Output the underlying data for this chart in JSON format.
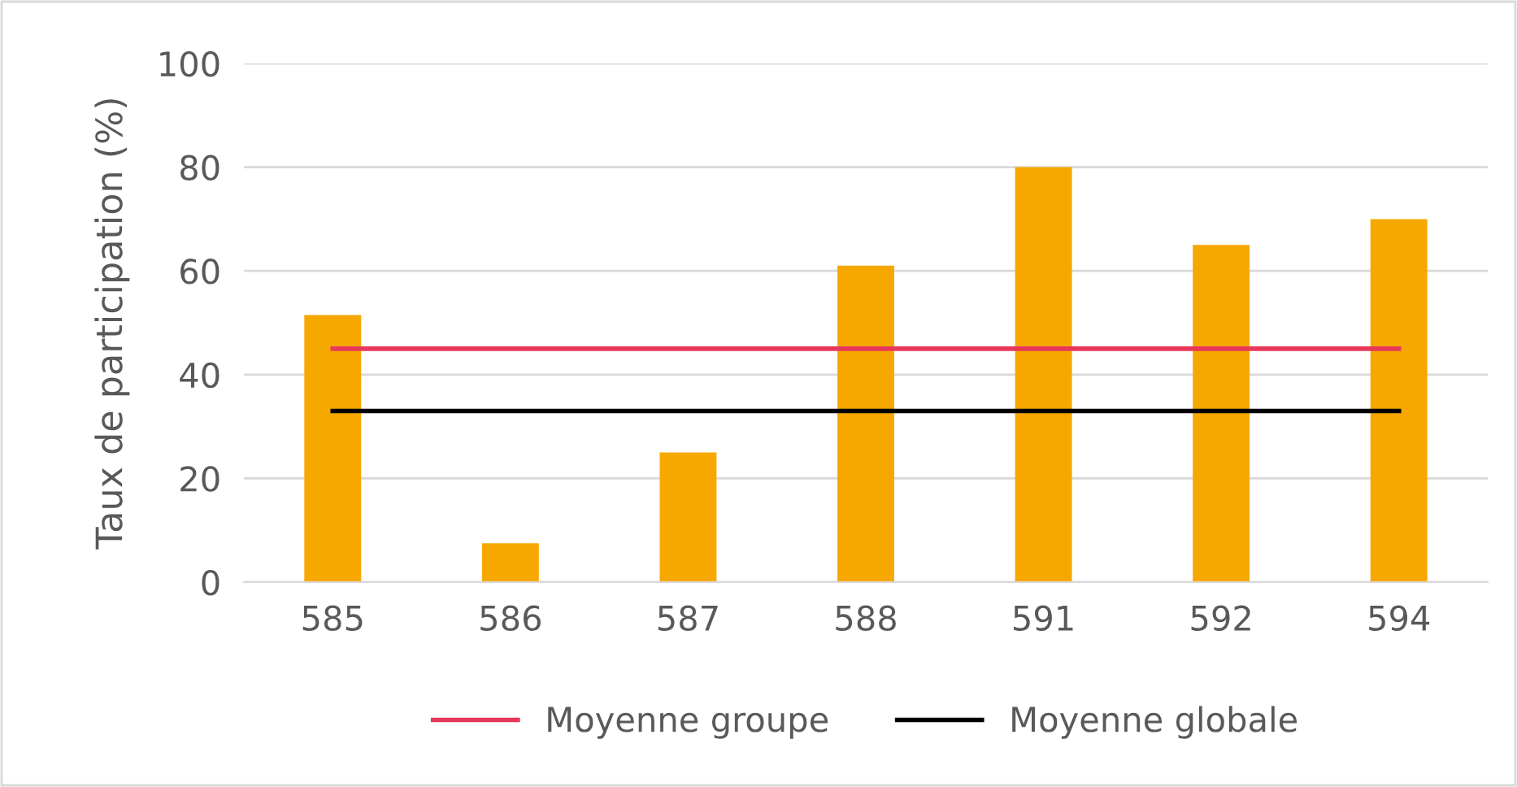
{
  "chart_data": {
    "type": "bar",
    "ylabel": "Taux de participation (%)",
    "categories": [
      "585",
      "586",
      "587",
      "588",
      "591",
      "592",
      "594"
    ],
    "series": [
      {
        "color": "#f7a800",
        "values": [
          51.5,
          7.5,
          25,
          61,
          80,
          65,
          70
        ]
      },
      {
        "type": "line",
        "name": "Moyenne groupe",
        "color": "#e8385a",
        "values": [
          45,
          45,
          45,
          45,
          45,
          45,
          45
        ]
      },
      {
        "type": "line",
        "name": "Moyenne globale",
        "color": "#000000",
        "values": [
          33,
          33,
          33,
          33,
          33,
          33,
          33
        ]
      }
    ],
    "ylim": [
      0,
      100
    ],
    "yticks": [
      0,
      20,
      40,
      60,
      80,
      100
    ],
    "grid": "y",
    "legend": "bottom",
    "marker": "none",
    "line_style": "solid"
  }
}
